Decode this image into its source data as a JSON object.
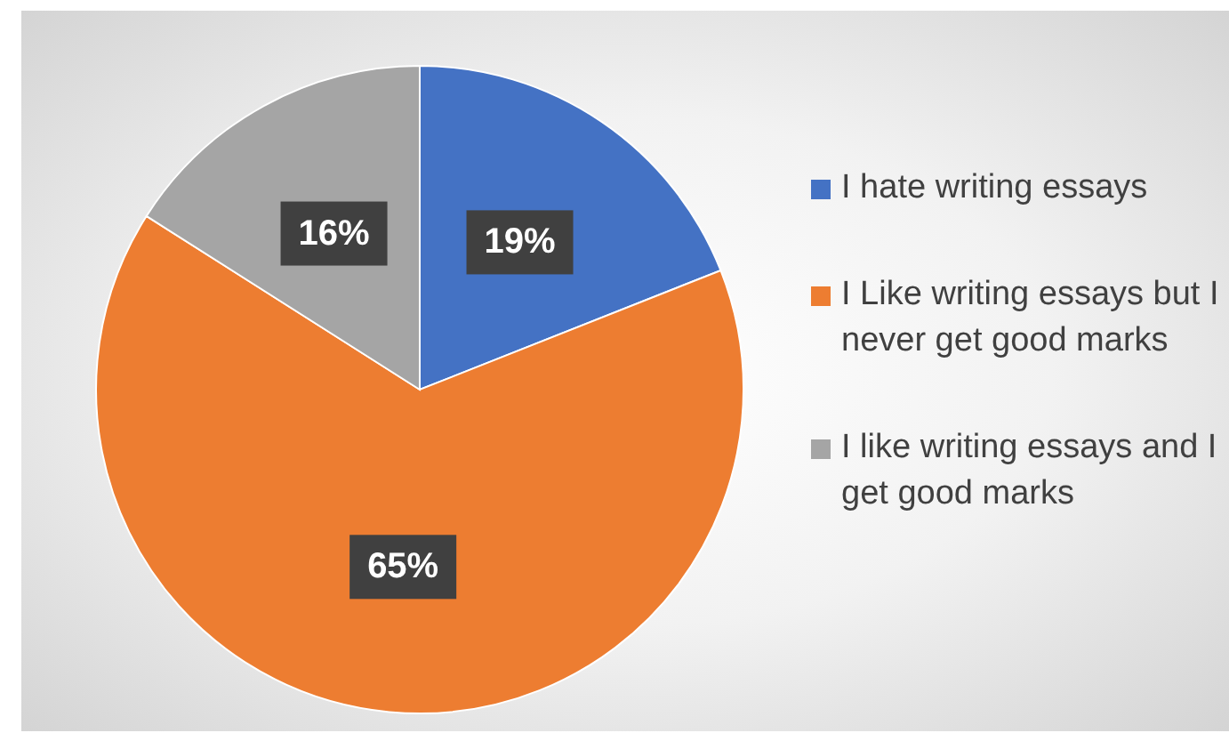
{
  "chart_data": {
    "type": "pie",
    "categories": [
      "I hate writing essays",
      "I Like writing essays but I never get good marks",
      "I like writing essays and I get good marks"
    ],
    "values": [
      19,
      65,
      16
    ],
    "colors": [
      "#4472c4",
      "#ed7d31",
      "#a5a5a5"
    ],
    "value_labels": [
      "19%",
      "65%",
      "16%"
    ],
    "legend": "right"
  }
}
